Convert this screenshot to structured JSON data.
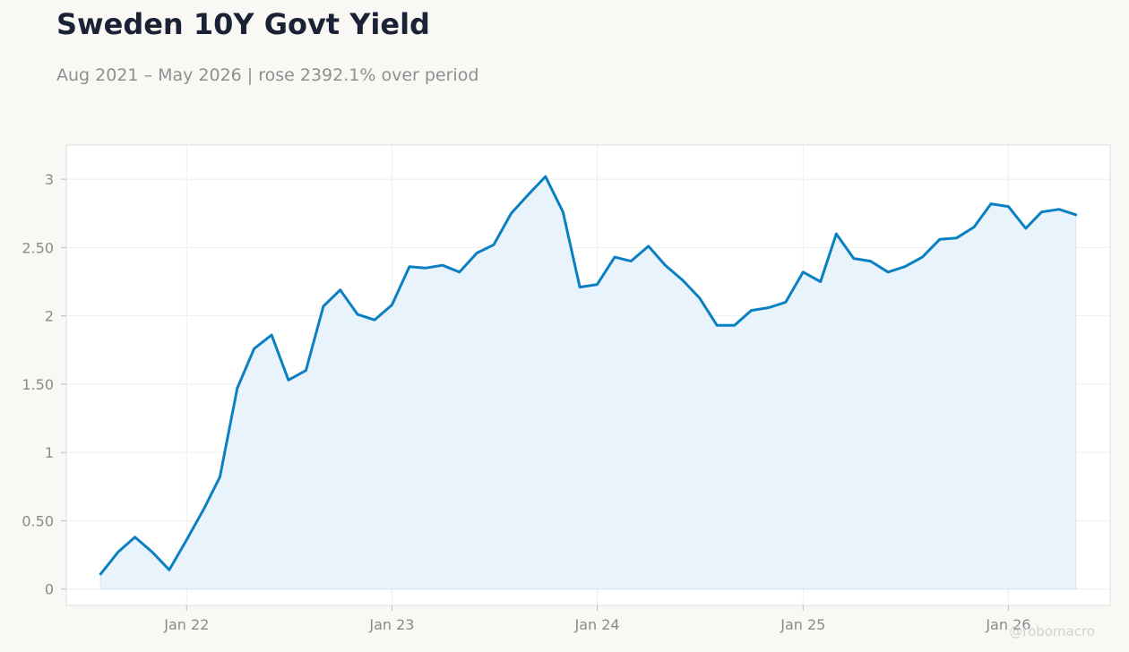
{
  "title": "Sweden 10Y Govt Yield",
  "subtitle": "Aug 2021 – May 2026 | rose 2392.1% over period",
  "watermark": "@robomacro",
  "colors": {
    "line": "#0a80c2",
    "area": "#e8f3fb",
    "grid": "#eeeeee",
    "plot_bg": "#ffffff",
    "page_bg": "#f9f8f5"
  },
  "chart_data": {
    "type": "area",
    "title": "Sweden 10Y Govt Yield",
    "subtitle": "Aug 2021 – May 2026 | rose 2392.1% over period",
    "xlabel": "",
    "ylabel": "",
    "x_range": [
      "2021-06-01",
      "2026-07-01"
    ],
    "ylim": [
      -0.12,
      3.25
    ],
    "grid": true,
    "yticks": [
      {
        "value": 0,
        "label": "0"
      },
      {
        "value": 0.5,
        "label": "0.50"
      },
      {
        "value": 1,
        "label": "1"
      },
      {
        "value": 1.5,
        "label": "1.50"
      },
      {
        "value": 2,
        "label": "2"
      },
      {
        "value": 2.5,
        "label": "2.50"
      },
      {
        "value": 3,
        "label": "3"
      }
    ],
    "xticks": [
      {
        "date": "2022-01-01",
        "label": "Jan 22"
      },
      {
        "date": "2023-01-01",
        "label": "Jan 23"
      },
      {
        "date": "2024-01-01",
        "label": "Jan 24"
      },
      {
        "date": "2025-01-01",
        "label": "Jan 25"
      },
      {
        "date": "2026-01-01",
        "label": "Jan 26"
      }
    ],
    "series": [
      {
        "x": [
          "2021-08-01",
          "2021-09-01",
          "2021-10-01",
          "2021-11-01",
          "2021-12-01",
          "2022-01-01",
          "2022-02-01",
          "2022-03-01",
          "2022-04-01",
          "2022-05-01",
          "2022-06-01",
          "2022-07-01",
          "2022-08-01",
          "2022-09-01",
          "2022-10-01",
          "2022-11-01",
          "2022-12-01",
          "2023-01-01",
          "2023-02-01",
          "2023-03-01",
          "2023-04-01",
          "2023-05-01",
          "2023-06-01",
          "2023-07-01",
          "2023-08-01",
          "2023-09-01",
          "2023-10-01",
          "2023-11-01",
          "2023-12-01",
          "2024-01-01",
          "2024-02-01",
          "2024-03-01",
          "2024-04-01",
          "2024-05-01",
          "2024-06-01",
          "2024-07-01",
          "2024-08-01",
          "2024-09-01",
          "2024-10-01",
          "2024-11-01",
          "2024-12-01",
          "2025-01-01",
          "2025-02-01",
          "2025-03-01",
          "2025-04-01",
          "2025-05-01",
          "2025-06-01",
          "2025-07-01",
          "2025-08-01",
          "2025-09-01",
          "2025-10-01",
          "2025-11-01",
          "2025-12-01",
          "2026-01-01",
          "2026-02-01",
          "2026-03-01",
          "2026-04-01",
          "2026-05-01"
        ],
        "values": [
          0.11,
          0.27,
          0.38,
          0.27,
          0.14,
          0.36,
          0.59,
          0.82,
          1.47,
          1.76,
          1.86,
          1.53,
          1.6,
          2.07,
          2.19,
          2.01,
          1.97,
          2.08,
          2.36,
          2.35,
          2.37,
          2.32,
          2.46,
          2.52,
          2.75,
          2.89,
          3.02,
          2.76,
          2.21,
          2.23,
          2.43,
          2.4,
          2.51,
          2.37,
          2.26,
          2.13,
          1.93,
          1.93,
          2.04,
          2.06,
          2.1,
          2.32,
          2.25,
          2.6,
          2.42,
          2.4,
          2.32,
          2.36,
          2.43,
          2.56,
          2.57,
          2.65,
          2.82,
          2.8,
          2.64,
          2.76,
          2.78,
          2.74
        ]
      }
    ]
  }
}
